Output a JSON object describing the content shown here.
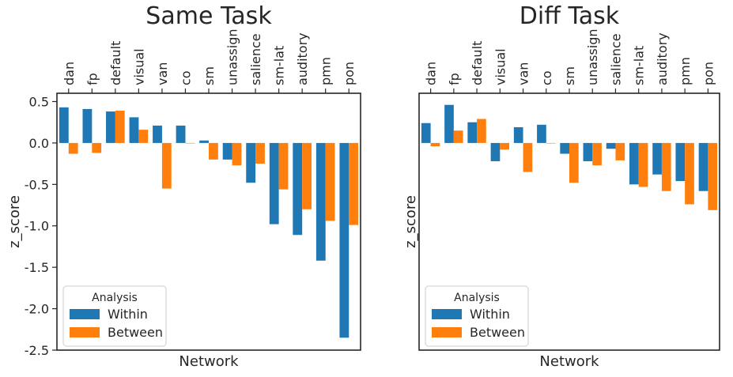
{
  "chart_data": [
    {
      "type": "bar",
      "title": "Same Task",
      "xlabel": "Network",
      "ylabel": "z_score",
      "categories": [
        "dan",
        "fp",
        "default",
        "visual",
        "van",
        "co",
        "sm",
        "unassign",
        "salience",
        "sm-lat",
        "auditory",
        "pmn",
        "pon"
      ],
      "series": [
        {
          "name": "Within",
          "color": "#1f77b4",
          "values": [
            0.43,
            0.41,
            0.38,
            0.31,
            0.21,
            0.21,
            0.03,
            -0.2,
            -0.48,
            -0.98,
            -1.11,
            -1.42,
            -2.35
          ]
        },
        {
          "name": "Between",
          "color": "#ff7f0e",
          "values": [
            -0.13,
            -0.12,
            0.39,
            0.16,
            -0.55,
            0.0,
            -0.2,
            -0.27,
            -0.25,
            -0.56,
            -0.8,
            -0.94,
            -0.99
          ]
        }
      ],
      "ylim": [
        -2.5,
        0.6
      ],
      "yticks": [
        "0.5",
        "0.0",
        "-0.5",
        "-1.0",
        "-1.5",
        "-2.0",
        "-2.5"
      ],
      "grid": false,
      "legend": {
        "title": "Analysis",
        "placement": "lower-left"
      }
    },
    {
      "type": "bar",
      "title": "Diff Task",
      "xlabel": "Network",
      "ylabel": "z_score",
      "categories": [
        "dan",
        "fp",
        "default",
        "visual",
        "van",
        "co",
        "sm",
        "unassign",
        "salience",
        "sm-lat",
        "auditory",
        "pmn",
        "pon"
      ],
      "series": [
        {
          "name": "Within",
          "color": "#1f77b4",
          "values": [
            0.24,
            0.46,
            0.25,
            -0.22,
            0.19,
            0.22,
            -0.13,
            -0.22,
            -0.07,
            -0.5,
            -0.38,
            -0.46,
            -0.58
          ]
        },
        {
          "name": "Between",
          "color": "#ff7f0e",
          "values": [
            -0.04,
            0.15,
            0.29,
            -0.08,
            -0.35,
            0.0,
            -0.48,
            -0.27,
            -0.21,
            -0.53,
            -0.58,
            -0.74,
            -0.81
          ]
        }
      ],
      "ylim": [
        -2.5,
        0.6
      ],
      "yticks": [],
      "grid": false,
      "legend": {
        "title": "Analysis",
        "placement": "lower-left"
      }
    }
  ]
}
